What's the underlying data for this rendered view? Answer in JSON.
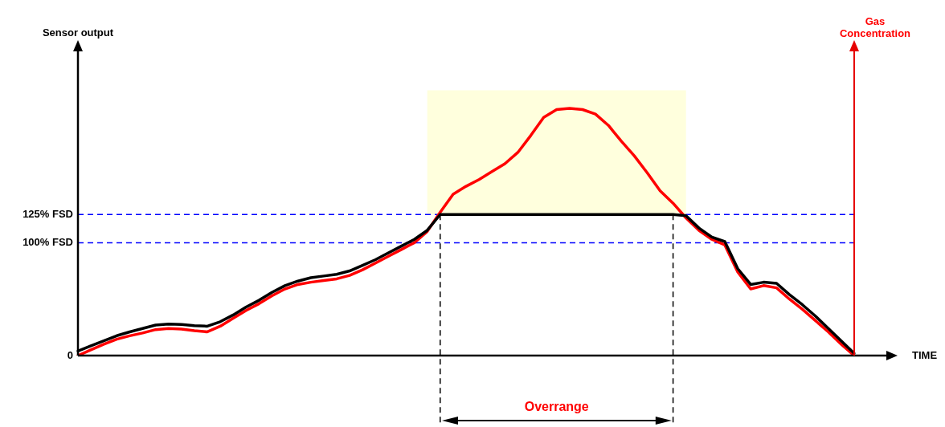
{
  "chart_data": {
    "type": "line",
    "ylabel": "Sensor output",
    "y2label": "Gas Concentration",
    "categories": [
      null,
      null,
      null,
      null,
      null,
      null,
      null,
      null,
      null,
      null,
      null,
      null,
      null,
      null,
      null,
      null,
      null,
      null,
      null,
      null,
      null,
      null,
      null,
      null,
      null,
      null,
      null,
      null,
      null,
      null,
      null,
      null,
      null,
      null,
      null,
      null,
      null,
      null,
      null,
      null,
      null,
      null,
      null,
      null,
      null,
      null,
      null,
      null,
      null,
      null,
      null,
      null,
      null,
      null,
      null,
      null,
      null,
      null,
      null,
      null,
      null
    ],
    "ylim": [
      0,
      271
    ],
    "yticks": [
      0,
      {
        "value": 100,
        "label": "100% FSD"
      },
      {
        "value": 125,
        "label": "125% FSD"
      }
    ],
    "tick_labels": "y",
    "grid": false,
    "legend": false,
    "marker": "none",
    "line_style": "solid",
    "series": [
      {
        "color": "#000000",
        "values": [
          4,
          8.6,
          13,
          17.6,
          21,
          24,
          27,
          28,
          27.5,
          26.5,
          26,
          30,
          36,
          43,
          49,
          56,
          62,
          66,
          69,
          70.5,
          72,
          75,
          80,
          85,
          91,
          97,
          103,
          111,
          125,
          125,
          125,
          125,
          125,
          125,
          125,
          125,
          125,
          125,
          125,
          125,
          125,
          125,
          125,
          125,
          125,
          125,
          125,
          124,
          113,
          105,
          101,
          77,
          63,
          65,
          64,
          54,
          45,
          35,
          24,
          13,
          2
        ]
      },
      {
        "color": "#ff0000",
        "values": [
          0,
          5,
          10,
          14.5,
          17.5,
          20,
          23,
          24,
          23.5,
          22,
          21,
          26,
          33,
          40,
          46,
          53,
          59,
          63,
          65,
          66.5,
          68,
          71,
          76,
          82,
          88,
          94,
          100,
          110,
          127,
          143,
          150,
          156,
          163,
          170,
          180,
          195,
          211,
          218,
          219,
          218,
          214,
          204,
          190,
          177,
          162,
          146,
          135,
          122,
          111,
          103,
          98,
          74,
          59,
          62,
          60,
          50,
          41,
          31,
          21,
          10,
          0
        ]
      }
    ],
    "ref_lines": [
      {
        "axis": "y",
        "value": 100,
        "color": "#0000ff",
        "line_style": "dashed"
      },
      {
        "axis": "y",
        "value": 125,
        "color": "#0000ff",
        "line_style": "dashed"
      }
    ],
    "bands": [
      {
        "axis": "y",
        "from": 125,
        "to": 235,
        "color": "#ffffdd"
      }
    ],
    "annotations": [
      "Overrange",
      "TIME"
    ]
  }
}
